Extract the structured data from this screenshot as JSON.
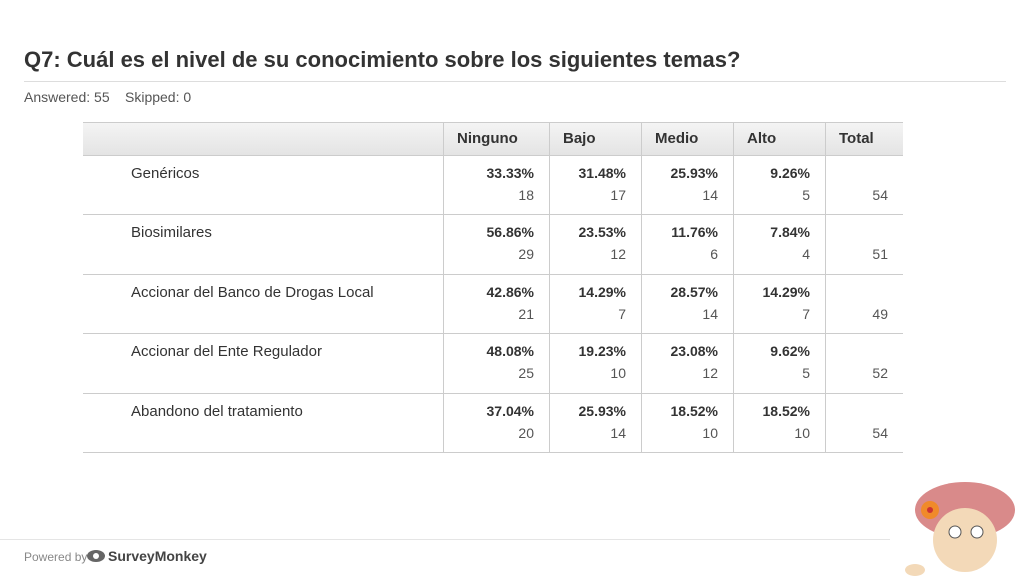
{
  "header": {
    "title": "Q7: Cuál es el nivel de su conocimiento sobre los siguientes temas?",
    "answered": "Answered: 55",
    "skipped": "Skipped: 0"
  },
  "table": {
    "columns": [
      "Ninguno",
      "Bajo",
      "Medio",
      "Alto",
      "Total"
    ],
    "rows": [
      {
        "label": "Genéricos",
        "cells": [
          {
            "percent": "33.33%",
            "count": 18
          },
          {
            "percent": "31.48%",
            "count": 17
          },
          {
            "percent": "25.93%",
            "count": 14
          },
          {
            "percent": "9.26%",
            "count": 5
          }
        ],
        "total": 54
      },
      {
        "label": "Biosimilares",
        "cells": [
          {
            "percent": "56.86%",
            "count": 29
          },
          {
            "percent": "23.53%",
            "count": 12
          },
          {
            "percent": "11.76%",
            "count": 6
          },
          {
            "percent": "7.84%",
            "count": 4
          }
        ],
        "total": 51
      },
      {
        "label": "Accionar del Banco de Drogas Local",
        "cells": [
          {
            "percent": "42.86%",
            "count": 21
          },
          {
            "percent": "14.29%",
            "count": 7
          },
          {
            "percent": "28.57%",
            "count": 14
          },
          {
            "percent": "14.29%",
            "count": 7
          }
        ],
        "total": 49
      },
      {
        "label": "Accionar del Ente Regulador",
        "cells": [
          {
            "percent": "48.08%",
            "count": 25
          },
          {
            "percent": "19.23%",
            "count": 10
          },
          {
            "percent": "23.08%",
            "count": 12
          },
          {
            "percent": "9.62%",
            "count": 5
          }
        ],
        "total": 52
      },
      {
        "label": "Abandono del tratamiento",
        "cells": [
          {
            "percent": "37.04%",
            "count": 20
          },
          {
            "percent": "25.93%",
            "count": 14
          },
          {
            "percent": "18.52%",
            "count": 10
          },
          {
            "percent": "18.52%",
            "count": 10
          }
        ],
        "total": 54
      }
    ]
  },
  "footer": {
    "powered_by": "Powered by",
    "brand": "SurveyMonkey"
  }
}
